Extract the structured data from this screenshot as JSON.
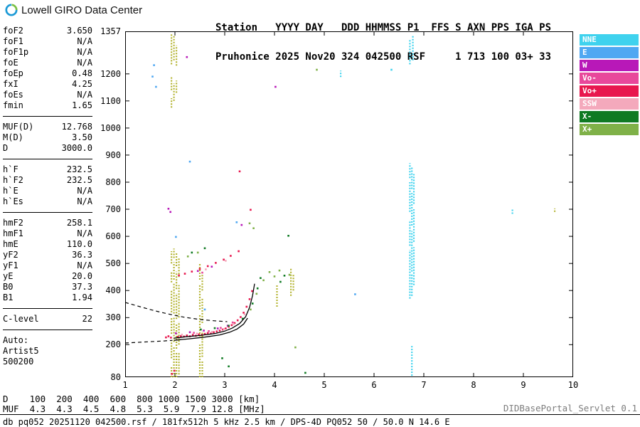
{
  "header": {
    "brand": "Lowell GIRO Data Center",
    "station_line1": "Station   YYYY DAY   DDD HHMMSS P1  FFS S AXN PPS IGA PS",
    "station_line2": "Pruhonice 2025 Nov20 324 042500 RSF     1 713 100 03+ 33"
  },
  "params": {
    "groups": [
      {
        "rows": [
          [
            "foF2",
            "3.650"
          ],
          [
            "foF1",
            "N/A"
          ],
          [
            "foF1p",
            "N/A"
          ],
          [
            "foE",
            "N/A"
          ],
          [
            "foEp",
            "0.48"
          ],
          [
            "fxI",
            "4.25"
          ],
          [
            "foEs",
            "N/A"
          ],
          [
            "fmin",
            "1.65"
          ]
        ]
      },
      {
        "rows": [
          [
            "MUF(D)",
            "12.768"
          ],
          [
            "M(D)",
            "3.50"
          ],
          [
            "D",
            "3000.0"
          ]
        ]
      },
      {
        "rows": [
          [
            "h`F",
            "232.5"
          ],
          [
            "h`F2",
            "232.5"
          ],
          [
            "h`E",
            "N/A"
          ],
          [
            "h`Es",
            "N/A"
          ]
        ]
      },
      {
        "rows": [
          [
            "hmF2",
            "258.1"
          ],
          [
            "hmF1",
            "N/A"
          ],
          [
            "hmE",
            "110.0"
          ],
          [
            "yF2",
            "36.3"
          ],
          [
            "yF1",
            "N/A"
          ],
          [
            "yE",
            "20.0"
          ],
          [
            "B0",
            "37.3"
          ],
          [
            "B1",
            "1.94"
          ]
        ]
      },
      {
        "rows": [
          [
            "C-level",
            "22"
          ]
        ]
      }
    ],
    "auto_label": "Auto:",
    "auto_lines": [
      "Artist5",
      "500200"
    ]
  },
  "legend": {
    "items": [
      {
        "label": "NNE",
        "color": "#3FD2EE"
      },
      {
        "label": "E",
        "color": "#4FA8F2"
      },
      {
        "label": "W",
        "color": "#B818B8"
      },
      {
        "label": "Vo-",
        "color": "#E8489B"
      },
      {
        "label": "Vo+",
        "color": "#E8174E"
      },
      {
        "label": "SSW",
        "color": "#F4A9BC"
      },
      {
        "label": "X-",
        "color": "#0F7A23"
      },
      {
        "label": "X+",
        "color": "#7FB148"
      }
    ]
  },
  "chart_data": {
    "type": "scatter",
    "xlabel": "[MHz]",
    "ylabel": "[km]",
    "xlim": [
      1,
      10
    ],
    "ylim": [
      80,
      1357
    ],
    "x_ticks": [
      1,
      2,
      3,
      4,
      5,
      6,
      7,
      8,
      9,
      10
    ],
    "y_ticks": [
      80,
      200,
      300,
      400,
      500,
      600,
      700,
      800,
      900,
      1000,
      1100,
      1200,
      1357
    ],
    "series": [
      {
        "name": "Vo+",
        "color": "#E8174E",
        "points": [
          [
            1.82,
            227
          ],
          [
            1.87,
            231
          ],
          [
            1.92,
            226
          ],
          [
            1.94,
            92
          ],
          [
            1.99,
            104
          ],
          [
            2.06,
            229
          ],
          [
            2.12,
            232
          ],
          [
            2.18,
            230
          ],
          [
            2.24,
            234
          ],
          [
            2.3,
            231
          ],
          [
            2.36,
            236
          ],
          [
            2.42,
            233
          ],
          [
            2.48,
            238
          ],
          [
            2.54,
            236
          ],
          [
            2.6,
            240
          ],
          [
            2.66,
            243
          ],
          [
            2.72,
            241
          ],
          [
            2.78,
            246
          ],
          [
            2.84,
            249
          ],
          [
            2.9,
            252
          ],
          [
            2.96,
            256
          ],
          [
            3.02,
            260
          ],
          [
            3.08,
            266
          ],
          [
            3.14,
            272
          ],
          [
            3.2,
            280
          ],
          [
            3.26,
            290
          ],
          [
            3.32,
            302
          ],
          [
            3.38,
            318
          ],
          [
            3.44,
            340
          ],
          [
            3.5,
            368
          ],
          [
            3.55,
            398
          ],
          [
            3.3,
            840
          ],
          [
            3.52,
            698
          ],
          [
            2.08,
            456
          ],
          [
            2.2,
            462
          ],
          [
            2.34,
            470
          ],
          [
            2.5,
            480
          ],
          [
            2.66,
            490
          ],
          [
            2.82,
            502
          ],
          [
            2.98,
            514
          ],
          [
            3.12,
            528
          ],
          [
            3.28,
            545
          ]
        ]
      },
      {
        "name": "Vo-",
        "color": "#E8489B",
        "points": [
          [
            2.38,
            244
          ],
          [
            2.68,
            250
          ],
          [
            2.92,
            262
          ],
          [
            3.16,
            282
          ],
          [
            2.55,
            466
          ]
        ]
      },
      {
        "name": "W",
        "color": "#B818B8",
        "points": [
          [
            1.87,
            702
          ],
          [
            1.91,
            690
          ],
          [
            2.02,
            242
          ],
          [
            2.3,
            246
          ],
          [
            2.58,
            252
          ],
          [
            2.86,
            260
          ],
          [
            3.06,
            270
          ],
          [
            2.46,
            472
          ],
          [
            2.74,
            488
          ],
          [
            4.02,
            1152
          ],
          [
            3.34,
            642
          ],
          [
            2.24,
            1262
          ]
        ]
      },
      {
        "name": "SSW",
        "color": "#F4A9BC",
        "points": [
          [
            2.14,
            237
          ],
          [
            2.44,
            241
          ],
          [
            2.74,
            247
          ],
          [
            2.98,
            258
          ],
          [
            3.18,
            276
          ],
          [
            3.4,
            312
          ],
          [
            2.62,
            478
          ],
          [
            3.02,
            510
          ]
        ]
      },
      {
        "name": "X-",
        "color": "#0F7A23",
        "points": [
          [
            2.52,
            256
          ],
          [
            2.8,
            261
          ],
          [
            3.08,
            270
          ],
          [
            3.36,
            296
          ],
          [
            3.56,
            352
          ],
          [
            3.66,
            408
          ],
          [
            3.72,
            446
          ],
          [
            2.34,
            540
          ],
          [
            2.6,
            556
          ],
          [
            4.12,
            432
          ],
          [
            4.2,
            455
          ],
          [
            2.95,
            150
          ],
          [
            3.08,
            120
          ],
          [
            4.28,
            602
          ],
          [
            4.62,
            96
          ]
        ]
      },
      {
        "name": "X+",
        "color": "#7FB148",
        "points": [
          [
            3.52,
            330
          ],
          [
            3.64,
            388
          ],
          [
            3.78,
            438
          ],
          [
            3.9,
            468
          ],
          [
            4.0,
            452
          ],
          [
            4.1,
            474
          ],
          [
            4.3,
            458
          ],
          [
            2.26,
            526
          ],
          [
            2.46,
            540
          ],
          [
            4.42,
            190
          ],
          [
            3.5,
            648
          ],
          [
            3.58,
            630
          ],
          [
            4.85,
            1215
          ]
        ]
      },
      {
        "name": "E",
        "color": "#4FA8F2",
        "points": [
          [
            1.55,
            1190
          ],
          [
            1.58,
            1232
          ],
          [
            1.62,
            1152
          ],
          [
            2.02,
            598
          ],
          [
            2.3,
            876
          ],
          [
            5.62,
            386
          ],
          [
            2.6,
            330
          ],
          [
            3.24,
            652
          ]
        ]
      },
      {
        "name": "NNE",
        "color": "#3FD2EE",
        "points": [
          [
            6.35,
            1215
          ]
        ]
      }
    ],
    "streaks": [
      {
        "name": "interference",
        "color": "#B4B432",
        "segs": [
          [
            1.93,
            1235,
            1350
          ],
          [
            1.93,
            1140,
            1190
          ],
          [
            1.93,
            1075,
            1110
          ],
          [
            1.93,
            80,
            120
          ],
          [
            1.93,
            150,
            215
          ],
          [
            1.93,
            240,
            300
          ],
          [
            1.93,
            320,
            400
          ],
          [
            1.93,
            430,
            470
          ],
          [
            1.93,
            500,
            545
          ],
          [
            1.98,
            1250,
            1340
          ],
          [
            1.98,
            1100,
            1165
          ],
          [
            1.98,
            80,
            195
          ],
          [
            1.98,
            210,
            300
          ],
          [
            1.98,
            315,
            425
          ],
          [
            1.98,
            440,
            505
          ],
          [
            1.98,
            520,
            555
          ],
          [
            2.03,
            1230,
            1305
          ],
          [
            2.03,
            1130,
            1175
          ],
          [
            2.03,
            80,
            170
          ],
          [
            2.03,
            185,
            280
          ],
          [
            2.03,
            295,
            390
          ],
          [
            2.03,
            405,
            470
          ],
          [
            2.03,
            490,
            540
          ],
          [
            2.08,
            90,
            170
          ],
          [
            2.08,
            200,
            285
          ],
          [
            2.08,
            300,
            420
          ],
          [
            2.08,
            450,
            520
          ],
          [
            2.5,
            80,
            200
          ],
          [
            2.5,
            230,
            310
          ],
          [
            2.5,
            330,
            420
          ],
          [
            2.5,
            440,
            500
          ],
          [
            2.55,
            80,
            140
          ],
          [
            2.55,
            155,
            250
          ],
          [
            2.55,
            280,
            370
          ],
          [
            2.55,
            400,
            465
          ],
          [
            4.05,
            340,
            420
          ],
          [
            4.33,
            380,
            480
          ],
          [
            4.38,
            400,
            462
          ],
          [
            9.63,
            690,
            703
          ]
        ]
      },
      {
        "name": "NNE",
        "color": "#3FD2EE",
        "segs": [
          [
            6.72,
            1235,
            1325
          ],
          [
            6.78,
            1250,
            1340
          ],
          [
            6.72,
            370,
            550
          ],
          [
            6.72,
            565,
            660
          ],
          [
            6.72,
            690,
            800
          ],
          [
            6.72,
            815,
            870
          ],
          [
            6.76,
            380,
            460
          ],
          [
            6.76,
            470,
            620
          ],
          [
            6.76,
            640,
            760
          ],
          [
            6.76,
            775,
            858
          ],
          [
            6.8,
            420,
            560
          ],
          [
            6.8,
            580,
            700
          ],
          [
            6.8,
            720,
            830
          ],
          [
            6.76,
            85,
            195
          ],
          [
            8.78,
            683,
            700
          ],
          [
            5.33,
            1188,
            1212
          ]
        ]
      }
    ],
    "solid": [
      [
        [
          1.98,
          224
        ],
        [
          2.2,
          229
        ],
        [
          2.5,
          234
        ],
        [
          2.8,
          241
        ],
        [
          3.0,
          250
        ],
        [
          3.15,
          261
        ],
        [
          3.3,
          278
        ],
        [
          3.42,
          303
        ],
        [
          3.5,
          338
        ],
        [
          3.56,
          382
        ],
        [
          3.6,
          425
        ]
      ],
      [
        [
          1.98,
          216
        ],
        [
          2.3,
          222
        ],
        [
          2.6,
          228
        ],
        [
          2.9,
          236
        ],
        [
          3.1,
          246
        ],
        [
          3.25,
          258
        ],
        [
          3.38,
          276
        ],
        [
          3.46,
          298
        ]
      ]
    ],
    "dashed": [
      [
        [
          1.0,
          356
        ],
        [
          1.3,
          340
        ],
        [
          1.6,
          325
        ],
        [
          1.9,
          312
        ],
        [
          2.2,
          301
        ],
        [
          2.5,
          293
        ],
        [
          2.8,
          288
        ],
        [
          3.05,
          285
        ]
      ],
      [
        [
          1.0,
          206
        ],
        [
          1.4,
          210
        ],
        [
          1.8,
          214
        ],
        [
          1.95,
          216
        ]
      ]
    ]
  },
  "muf_table": {
    "row_labels": [
      "D",
      "MUF"
    ],
    "d_values": [
      "100",
      "200",
      "400",
      "600",
      "800",
      "1000",
      "1500",
      "3000"
    ],
    "muf_values": [
      "4.3",
      "4.3",
      "4.5",
      "4.8",
      "5.3",
      "5.9",
      "7.9",
      "12.8"
    ],
    "d_unit": "[km]",
    "muf_unit": "[MHz]"
  },
  "footer": {
    "servlet": "DIDBasePortal_Servlet 0.1",
    "info": "db pq052 20251120 042500.rsf / 181fx512h 5 kHz 2.5 km / DPS-4D PQ052 50 / 50.0 N 14.6 E"
  }
}
